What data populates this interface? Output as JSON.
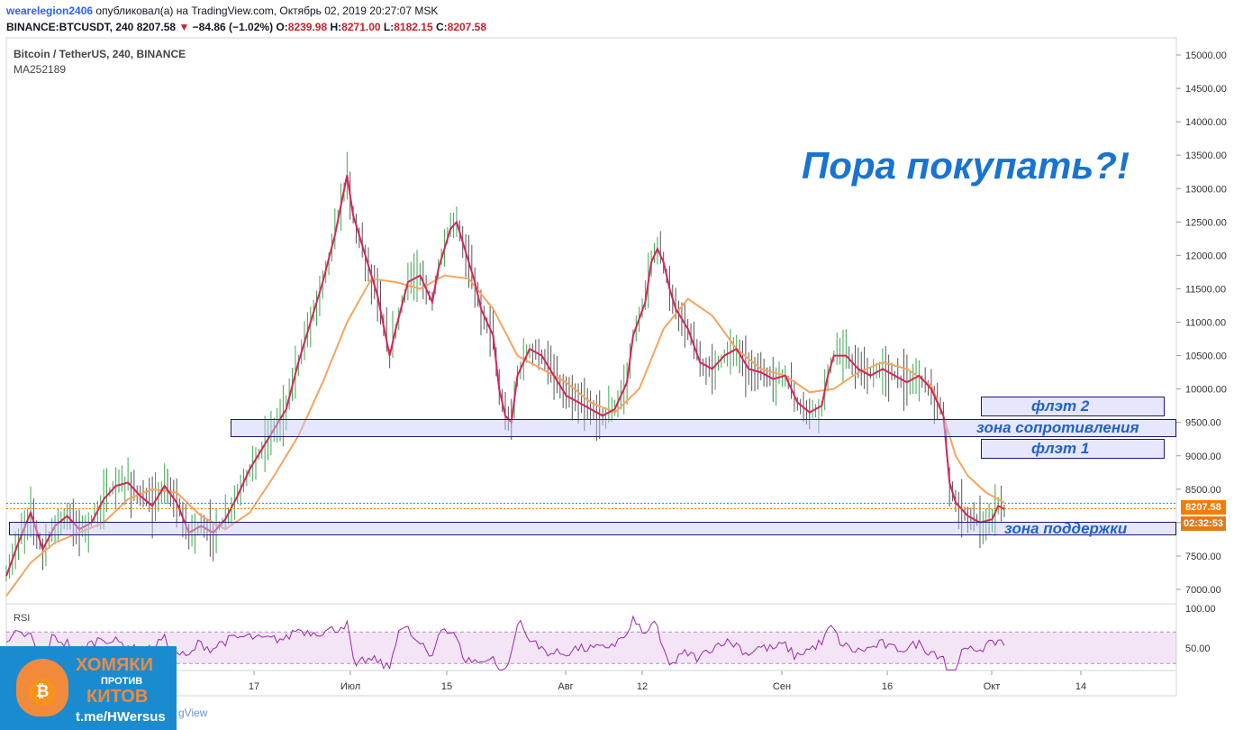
{
  "header": {
    "author": "wearelegion2406",
    "published": "опубликовал(а) на TradingView.com, Октябрь 02, 2019 20:27:07 MSK",
    "ticker": "BINANCE:BTCUSDT, 240",
    "last": "8207.58",
    "change": "−84.86 (−1.02%)",
    "o_label": "O:",
    "o": "8239.98",
    "h_label": "H:",
    "h": "8271.00",
    "l_label": "L:",
    "l": "8182.15",
    "c_label": "C:",
    "c": "8207.58"
  },
  "chart_data": {
    "type": "line",
    "title": "Bitcoin / TetherUS, 240, BINANCE",
    "indicator": "MA252189",
    "headline": "Пора покупать?!",
    "ylim": [
      6800,
      15300
    ],
    "y_ticks": [
      "15000.00",
      "14500.00",
      "14000.00",
      "13500.00",
      "13000.00",
      "12500.00",
      "12000.00",
      "11500.00",
      "11000.00",
      "10500.00",
      "10000.00",
      "9500.00",
      "9000.00",
      "8500.00",
      "8000.00",
      "7500.00",
      "7000.00"
    ],
    "x_ticks": [
      "17",
      "Июл",
      "15",
      "Авг",
      "12",
      "Сен",
      "16",
      "Окт",
      "14"
    ],
    "last_price": "8207.58",
    "countdown": "02:32:53",
    "price_path": [
      [
        0,
        7200
      ],
      [
        4,
        7700
      ],
      [
        8,
        8150
      ],
      [
        12,
        7600
      ],
      [
        16,
        7950
      ],
      [
        20,
        8100
      ],
      [
        24,
        7900
      ],
      [
        28,
        8000
      ],
      [
        32,
        8350
      ],
      [
        36,
        8550
      ],
      [
        40,
        8600
      ],
      [
        44,
        8400
      ],
      [
        48,
        8250
      ],
      [
        52,
        8550
      ],
      [
        56,
        8300
      ],
      [
        60,
        7850
      ],
      [
        64,
        7950
      ],
      [
        68,
        7850
      ],
      [
        72,
        8050
      ],
      [
        76,
        8400
      ],
      [
        80,
        8800
      ],
      [
        84,
        9100
      ],
      [
        88,
        9400
      ],
      [
        92,
        9700
      ],
      [
        96,
        10400
      ],
      [
        100,
        11000
      ],
      [
        104,
        11600
      ],
      [
        108,
        12300
      ],
      [
        112,
        13200
      ],
      [
        114,
        12600
      ],
      [
        118,
        12000
      ],
      [
        122,
        11400
      ],
      [
        126,
        10500
      ],
      [
        128,
        10900
      ],
      [
        132,
        11600
      ],
      [
        136,
        11700
      ],
      [
        140,
        11300
      ],
      [
        142,
        11800
      ],
      [
        146,
        12400
      ],
      [
        148,
        12500
      ],
      [
        150,
        12200
      ],
      [
        154,
        11600
      ],
      [
        156,
        11200
      ],
      [
        160,
        10800
      ],
      [
        162,
        10000
      ],
      [
        164,
        9600
      ],
      [
        166,
        9500
      ],
      [
        168,
        10200
      ],
      [
        172,
        10600
      ],
      [
        176,
        10500
      ],
      [
        180,
        10200
      ],
      [
        184,
        9900
      ],
      [
        188,
        9800
      ],
      [
        192,
        9700
      ],
      [
        196,
        9600
      ],
      [
        200,
        9700
      ],
      [
        204,
        10100
      ],
      [
        206,
        10800
      ],
      [
        210,
        11300
      ],
      [
        212,
        11900
      ],
      [
        214,
        12100
      ],
      [
        216,
        11900
      ],
      [
        218,
        11500
      ],
      [
        220,
        11200
      ],
      [
        224,
        10900
      ],
      [
        228,
        10400
      ],
      [
        232,
        10300
      ],
      [
        236,
        10500
      ],
      [
        240,
        10600
      ],
      [
        244,
        10300
      ],
      [
        248,
        10250
      ],
      [
        252,
        10150
      ],
      [
        256,
        10200
      ],
      [
        260,
        9800
      ],
      [
        264,
        9650
      ],
      [
        268,
        9750
      ],
      [
        270,
        10200
      ],
      [
        272,
        10500
      ],
      [
        276,
        10500
      ],
      [
        280,
        10300
      ],
      [
        284,
        10200
      ],
      [
        288,
        10300
      ],
      [
        292,
        10200
      ],
      [
        296,
        10100
      ],
      [
        300,
        10200
      ],
      [
        304,
        10000
      ],
      [
        308,
        9600
      ],
      [
        310,
        8600
      ],
      [
        312,
        8300
      ],
      [
        316,
        8100
      ],
      [
        320,
        8000
      ],
      [
        324,
        8050
      ],
      [
        326,
        8250
      ],
      [
        328,
        8200
      ]
    ],
    "ma_path": [
      [
        0,
        6900
      ],
      [
        8,
        7400
      ],
      [
        16,
        7700
      ],
      [
        24,
        7850
      ],
      [
        32,
        8000
      ],
      [
        40,
        8350
      ],
      [
        48,
        8500
      ],
      [
        56,
        8450
      ],
      [
        64,
        8100
      ],
      [
        72,
        7900
      ],
      [
        80,
        8150
      ],
      [
        88,
        8700
      ],
      [
        96,
        9300
      ],
      [
        104,
        10100
      ],
      [
        112,
        11000
      ],
      [
        120,
        11650
      ],
      [
        128,
        11600
      ],
      [
        136,
        11500
      ],
      [
        144,
        11700
      ],
      [
        152,
        11650
      ],
      [
        160,
        11200
      ],
      [
        168,
        10500
      ],
      [
        176,
        10300
      ],
      [
        184,
        10100
      ],
      [
        192,
        9800
      ],
      [
        200,
        9650
      ],
      [
        208,
        10000
      ],
      [
        216,
        10900
      ],
      [
        224,
        11350
      ],
      [
        232,
        11100
      ],
      [
        240,
        10600
      ],
      [
        248,
        10300
      ],
      [
        256,
        10200
      ],
      [
        264,
        9950
      ],
      [
        272,
        10000
      ],
      [
        280,
        10250
      ],
      [
        288,
        10400
      ],
      [
        296,
        10300
      ],
      [
        304,
        10050
      ],
      [
        308,
        9600
      ],
      [
        312,
        9000
      ],
      [
        316,
        8700
      ],
      [
        322,
        8450
      ],
      [
        328,
        8300
      ]
    ],
    "rsi": {
      "label": "RSI",
      "ticks": [
        "100.00",
        "50.00"
      ],
      "ylim": [
        20,
        100
      ],
      "band": [
        30,
        70
      ]
    }
  },
  "annotations": {
    "resistance": "зона сопротивления",
    "support": "зона поддержки",
    "flat1": "флэт 1",
    "flat2": "флэт 2"
  },
  "logo": {
    "line1": "ХОМЯКИ",
    "line2": "ПРОТИВ",
    "line3": "КИТОВ",
    "line4": "t.me/HWersus",
    "coin_glyph": "₿",
    "watermark": "gView"
  },
  "colors": {
    "price": "#d8245a",
    "ma": "#f5a55f",
    "rsi": "#9c27b0",
    "accent": "#1874d0",
    "last_price_bg": "#f57c00",
    "up_candle": "#3ca74e",
    "down_candle": "#555555"
  }
}
